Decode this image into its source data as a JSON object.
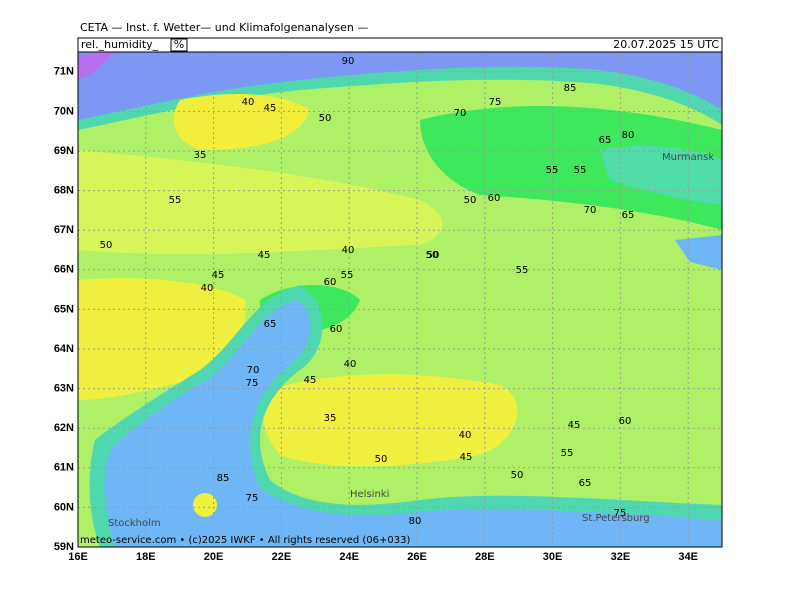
{
  "header": {
    "source": "CETA — Inst. f. Wetter— und Klimafolgenanalysen —",
    "field": "rel._humidity_",
    "unit": "%",
    "datetime": "20.07.2025 15 UTC"
  },
  "footer": {
    "copyright": "meteo-service.com • (c)2025 IWKF • All rights reserved (06+033)"
  },
  "map": {
    "lat_labels": [
      "59N",
      "60N",
      "61N",
      "62N",
      "63N",
      "64N",
      "65N",
      "66N",
      "67N",
      "68N",
      "69N",
      "70N",
      "71N"
    ],
    "lon_labels": [
      "16E",
      "18E",
      "20E",
      "22E",
      "24E",
      "26E",
      "28E",
      "30E",
      "32E",
      "34E"
    ],
    "places": [
      "Murmansk",
      "St.Petersburg",
      "Helsinki",
      "Stockholm"
    ],
    "contour_labels": [
      "90",
      "85",
      "75",
      "70",
      "65",
      "50",
      "45",
      "40",
      "35",
      "55",
      "60",
      "50",
      "45",
      "40",
      "55",
      "50",
      "55",
      "75",
      "70",
      "65",
      "60",
      "45",
      "40",
      "35",
      "40",
      "45",
      "50",
      "55",
      "60",
      "45",
      "50",
      "65",
      "75",
      "80",
      "85",
      "75",
      "55",
      "50",
      "60",
      "40",
      "45",
      "50",
      "55",
      "80",
      "70",
      "65"
    ]
  }
}
